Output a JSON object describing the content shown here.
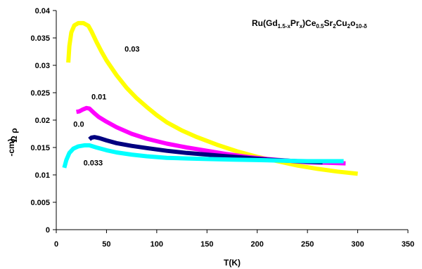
{
  "chart_data": {
    "type": "line",
    "title": {
      "parts": [
        {
          "t": "Ru(Gd",
          "sub": false
        },
        {
          "t": "1.5-x",
          "sub": true
        },
        {
          "t": "Pr",
          "sub": false
        },
        {
          "t": "x",
          "sub": true
        },
        {
          "t": ")Ce",
          "sub": false
        },
        {
          "t": "0.5",
          "sub": true
        },
        {
          "t": "Sr",
          "sub": false
        },
        {
          "t": "2",
          "sub": true
        },
        {
          "t": "Cu",
          "sub": false
        },
        {
          "t": "2",
          "sub": true
        },
        {
          "t": "o",
          "sub": false
        },
        {
          "t": "10-δ",
          "sub": true
        }
      ]
    },
    "xlabel": "T(K)",
    "ylabel": [
      "ρ",
      "Ω",
      "-cm)"
    ],
    "xlim": [
      0,
      350
    ],
    "ylim": [
      0,
      0.04
    ],
    "xticks": [
      "0",
      "50",
      "100",
      "150",
      "200",
      "250",
      "300",
      "350"
    ],
    "yticks": [
      "0",
      "0.005",
      "0.01",
      "0.015",
      "0.02",
      "0.025",
      "0.03",
      "0.035",
      "0.04"
    ],
    "grid": false,
    "legend": "none",
    "series": [
      {
        "name": "0.03",
        "color": "#ffff00",
        "points": [
          [
            12,
            0.0305
          ],
          [
            13,
            0.0335
          ],
          [
            15,
            0.036
          ],
          [
            18,
            0.0373
          ],
          [
            22,
            0.0377
          ],
          [
            27,
            0.0377
          ],
          [
            32,
            0.0372
          ],
          [
            35,
            0.0362
          ],
          [
            40,
            0.0343
          ],
          [
            45,
            0.0325
          ],
          [
            50,
            0.0309
          ],
          [
            60,
            0.0282
          ],
          [
            70,
            0.0259
          ],
          [
            80,
            0.024
          ],
          [
            90,
            0.0224
          ],
          [
            100,
            0.0209
          ],
          [
            110,
            0.0196
          ],
          [
            125,
            0.0181
          ],
          [
            140,
            0.0169
          ],
          [
            160,
            0.0155
          ],
          [
            180,
            0.0143
          ],
          [
            200,
            0.0133
          ],
          [
            220,
            0.0125
          ],
          [
            240,
            0.0117
          ],
          [
            260,
            0.0111
          ],
          [
            280,
            0.0106
          ],
          [
            300,
            0.0102
          ]
        ]
      },
      {
        "name": "0.01",
        "color": "#ff00ff",
        "points": [
          [
            20,
            0.0215
          ],
          [
            23,
            0.0216
          ],
          [
            26,
            0.0219
          ],
          [
            30,
            0.0222
          ],
          [
            33,
            0.0221
          ],
          [
            37,
            0.0214
          ],
          [
            42,
            0.0206
          ],
          [
            50,
            0.0197
          ],
          [
            60,
            0.0187
          ],
          [
            75,
            0.0175
          ],
          [
            90,
            0.0166
          ],
          [
            110,
            0.0157
          ],
          [
            130,
            0.015
          ],
          [
            150,
            0.0144
          ],
          [
            170,
            0.0138
          ],
          [
            190,
            0.0133
          ],
          [
            210,
            0.0129
          ],
          [
            230,
            0.0126
          ],
          [
            250,
            0.0123
          ],
          [
            270,
            0.0122
          ],
          [
            288,
            0.0121
          ]
        ]
      },
      {
        "name": "0.0",
        "color": "#000080",
        "points": [
          [
            33,
            0.0165
          ],
          [
            35,
            0.0168
          ],
          [
            38,
            0.0169
          ],
          [
            43,
            0.0167
          ],
          [
            50,
            0.0163
          ],
          [
            60,
            0.0158
          ],
          [
            75,
            0.0153
          ],
          [
            90,
            0.0149
          ],
          [
            110,
            0.0144
          ],
          [
            130,
            0.014
          ],
          [
            150,
            0.0137
          ],
          [
            170,
            0.0134
          ],
          [
            190,
            0.0131
          ],
          [
            210,
            0.0128
          ],
          [
            230,
            0.0126
          ],
          [
            250,
            0.0124
          ],
          [
            265,
            0.0123
          ]
        ]
      },
      {
        "name": "0.033",
        "color": "#00ffff",
        "points": [
          [
            8,
            0.0113
          ],
          [
            10,
            0.0127
          ],
          [
            13,
            0.014
          ],
          [
            17,
            0.0148
          ],
          [
            22,
            0.0152
          ],
          [
            28,
            0.0154
          ],
          [
            33,
            0.0154
          ],
          [
            40,
            0.015
          ],
          [
            50,
            0.0145
          ],
          [
            60,
            0.0141
          ],
          [
            75,
            0.0137
          ],
          [
            90,
            0.0134
          ],
          [
            110,
            0.0131
          ],
          [
            130,
            0.013
          ],
          [
            150,
            0.0129
          ],
          [
            175,
            0.0128
          ],
          [
            200,
            0.0127
          ],
          [
            225,
            0.0126
          ],
          [
            250,
            0.0125
          ],
          [
            270,
            0.0125
          ],
          [
            286,
            0.0125
          ]
        ]
      }
    ],
    "annotations": [
      {
        "text": "0.03",
        "x": 68,
        "y": 0.0325,
        "series": 0
      },
      {
        "text": "0.01",
        "x": 35,
        "y": 0.0238,
        "series": 1
      },
      {
        "text": "0.0",
        "x": 17,
        "y": 0.0188,
        "series": 2
      },
      {
        "text": "0.033",
        "x": 27,
        "y": 0.0117,
        "series": 3
      }
    ]
  }
}
